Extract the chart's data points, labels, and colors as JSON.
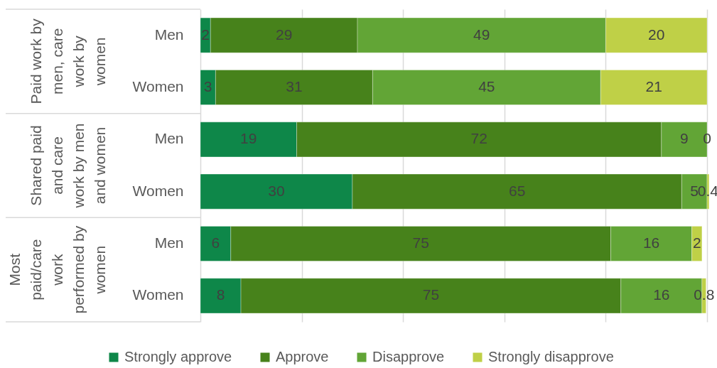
{
  "chart_data": {
    "type": "bar",
    "orientation": "horizontal",
    "stacked": true,
    "categories": [
      "Men",
      "Women",
      "Men",
      "Women",
      "Men",
      "Women"
    ],
    "series": [
      {
        "name": "Strongly approve",
        "color": "#0e8749",
        "values": [
          2,
          3,
          19,
          30,
          6,
          8
        ]
      },
      {
        "name": "Approve",
        "color": "#47821b",
        "values": [
          29,
          31,
          72,
          65,
          75,
          75
        ]
      },
      {
        "name": "Disapprove",
        "color": "#62a536",
        "values": [
          49,
          45,
          9,
          5,
          16,
          16
        ]
      },
      {
        "name": "Strongly disapprove",
        "color": "#bfd047",
        "values": [
          20,
          21,
          0,
          0.4,
          2,
          0.8
        ]
      }
    ],
    "xlim": [
      0,
      100
    ],
    "xticks": [
      {
        "value": 0,
        "label": null
      },
      {
        "value": 20,
        "label": null
      },
      {
        "value": 40,
        "label": null
      },
      {
        "value": 60,
        "label": null
      },
      {
        "value": 80,
        "label": null
      },
      {
        "value": 100,
        "label": null
      }
    ],
    "grid": "x",
    "tick_labels": "y",
    "legend": "bottom",
    "data_labels": true,
    "annotations": [
      "Paid work by men, care work by women",
      "Shared paid and care work by men and women",
      "Most paid/care work performed by women"
    ]
  }
}
